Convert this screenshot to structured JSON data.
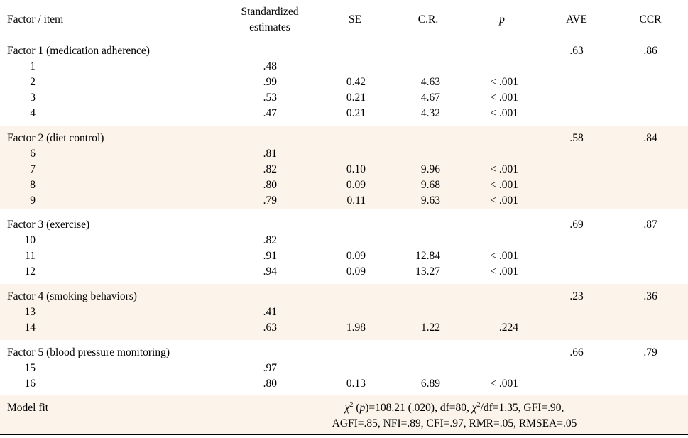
{
  "header": {
    "factor_item": "Factor / item",
    "std_est_line1": "Standardized",
    "std_est_line2": "estimates",
    "se": "SE",
    "cr": "C.R.",
    "p": "p",
    "ave": "AVE",
    "ccr": "CCR"
  },
  "factors": [
    {
      "label": "Factor 1 (medication adherence)",
      "ave": ".63",
      "ccr": ".86",
      "shaded": false,
      "items": [
        {
          "item": "1",
          "est": ".48",
          "se": "",
          "cr": "",
          "p": ""
        },
        {
          "item": "2",
          "est": ".99",
          "se": "0.42",
          "cr": "4.63",
          "p": "< .001"
        },
        {
          "item": "3",
          "est": ".53",
          "se": "0.21",
          "cr": "4.67",
          "p": "< .001"
        },
        {
          "item": "4",
          "est": ".47",
          "se": "0.21",
          "cr": "4.32",
          "p": "< .001"
        }
      ]
    },
    {
      "label": "Factor 2 (diet control)",
      "ave": ".58",
      "ccr": ".84",
      "shaded": true,
      "items": [
        {
          "item": "6",
          "est": ".81",
          "se": "",
          "cr": "",
          "p": ""
        },
        {
          "item": "7",
          "est": ".82",
          "se": "0.10",
          "cr": "9.96",
          "p": "< .001"
        },
        {
          "item": "8",
          "est": ".80",
          "se": "0.09",
          "cr": "9.68",
          "p": "< .001"
        },
        {
          "item": "9",
          "est": ".79",
          "se": "0.11",
          "cr": "9.63",
          "p": "< .001"
        }
      ]
    },
    {
      "label": "Factor 3 (exercise)",
      "ave": ".69",
      "ccr": ".87",
      "shaded": false,
      "items": [
        {
          "item": "10",
          "est": ".82",
          "se": "",
          "cr": "",
          "p": ""
        },
        {
          "item": "11",
          "est": ".91",
          "se": "0.09",
          "cr": "12.84",
          "p": "< .001"
        },
        {
          "item": "12",
          "est": ".94",
          "se": "0.09",
          "cr": "13.27",
          "p": "< .001"
        }
      ]
    },
    {
      "label": "Factor 4 (smoking behaviors)",
      "ave": ".23",
      "ccr": ".36",
      "shaded": true,
      "items": [
        {
          "item": "13",
          "est": ".41",
          "se": "",
          "cr": "",
          "p": ""
        },
        {
          "item": "14",
          "est": ".63",
          "se": "1.98",
          "cr": "1.22",
          "p": ".224"
        }
      ]
    },
    {
      "label": "Factor 5 (blood pressure monitoring)",
      "ave": ".66",
      "ccr": ".79",
      "shaded": false,
      "items": [
        {
          "item": "15",
          "est": ".97",
          "se": "",
          "cr": "",
          "p": ""
        },
        {
          "item": "16",
          "est": ".80",
          "se": "0.13",
          "cr": "6.89",
          "p": "< .001"
        }
      ]
    }
  ],
  "model_fit": {
    "label": "Model fit",
    "chi_symbol": "χ",
    "chi_sup": "2",
    "p_symbol": "p",
    "line1_part1": "=108.21 (.020),  df=80,  ",
    "line1_part2": "/df=1.35,  GFI=.90,",
    "line2": "AGFI=.85,  NFI=.89,  CFI=.97,  RMR=.05,  RMSEA=.05"
  },
  "colors": {
    "band": "#fcf3ea",
    "rule": "#000000"
  }
}
